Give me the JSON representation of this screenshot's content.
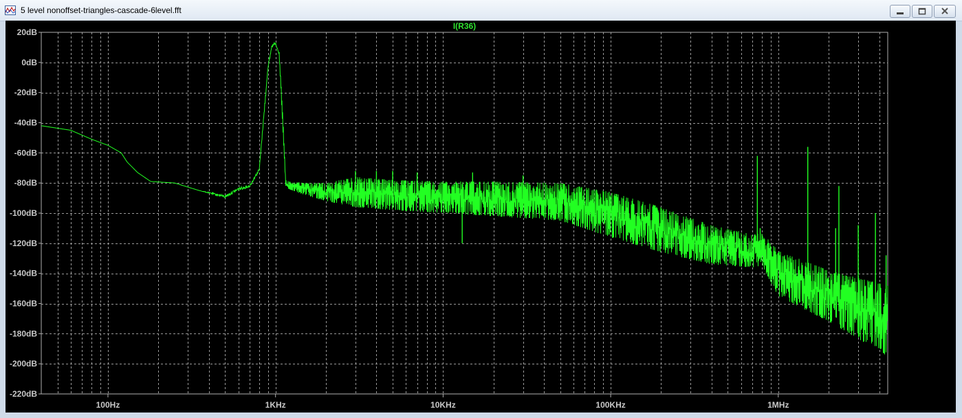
{
  "window": {
    "title": "5 level nonoffset-triangles-cascade-6level.fft",
    "icon": "ltspice-plot-icon",
    "controls": {
      "minimize": "minimize-icon",
      "maximize": "maximize-icon",
      "close": "close-icon"
    }
  },
  "colors": {
    "background": "#000000",
    "trace": "#22ff22",
    "grid": "#9a9a9a",
    "axis_text": "#c8c8c8"
  },
  "chart_data": {
    "type": "line",
    "title": "I(R36)",
    "xlabel": "",
    "ylabel": "",
    "x_scale": "log",
    "xlim": [
      40,
      4500000
    ],
    "ylim": [
      -220,
      20
    ],
    "grid": true,
    "x_ticks": [
      {
        "value": 100,
        "label": "100Hz"
      },
      {
        "value": 1000,
        "label": "1KHz"
      },
      {
        "value": 10000,
        "label": "10KHz"
      },
      {
        "value": 100000,
        "label": "100KHz"
      },
      {
        "value": 1000000,
        "label": "1MHz"
      }
    ],
    "y_ticks": [
      {
        "value": 20,
        "label": "20dB"
      },
      {
        "value": 0,
        "label": "0dB"
      },
      {
        "value": -20,
        "label": "-20dB"
      },
      {
        "value": -40,
        "label": "-40dB"
      },
      {
        "value": -60,
        "label": "-60dB"
      },
      {
        "value": -80,
        "label": "-80dB"
      },
      {
        "value": -100,
        "label": "-100dB"
      },
      {
        "value": -120,
        "label": "-120dB"
      },
      {
        "value": -140,
        "label": "-140dB"
      },
      {
        "value": -160,
        "label": "-160dB"
      },
      {
        "value": -180,
        "label": "-180dB"
      },
      {
        "value": -200,
        "label": "-200dB"
      },
      {
        "value": -220,
        "label": "-220dB"
      }
    ],
    "series": [
      {
        "name": "I(R36)",
        "color": "#22ff22",
        "envelope": {
          "x": [
            40,
            60,
            80,
            100,
            120,
            130,
            150,
            180,
            250,
            350,
            500,
            600,
            700,
            800,
            850,
            900,
            950,
            1000,
            1050,
            1100,
            1150,
            1200,
            1500,
            2000,
            3000,
            5000,
            10000,
            20000,
            50000,
            100000,
            200000,
            400000,
            700000,
            800000,
            1000000,
            2000000,
            4500000
          ],
          "upper": [
            -42,
            -45,
            -51,
            -55,
            -60,
            -66,
            -73,
            -79,
            -80,
            -85,
            -88,
            -83,
            -81,
            -70,
            -35,
            -3,
            12,
            14,
            8,
            -30,
            -78,
            -79,
            -80,
            -80,
            -76,
            -78,
            -79,
            -79,
            -80,
            -86,
            -96,
            -108,
            -114,
            -113,
            -125,
            -138,
            -148
          ],
          "lower": [
            -42,
            -45,
            -51,
            -55,
            -60,
            -66,
            -73,
            -79,
            -80,
            -85,
            -90,
            -85,
            -83,
            -72,
            -38,
            -6,
            10,
            12,
            5,
            -40,
            -82,
            -84,
            -88,
            -92,
            -96,
            -98,
            -100,
            -102,
            -105,
            -116,
            -126,
            -134,
            -136,
            -135,
            -155,
            -172,
            -195
          ]
        },
        "spikes": [
          {
            "x": 3000,
            "y": -72
          },
          {
            "x": 4000,
            "y": -72
          },
          {
            "x": 5000,
            "y": -72
          },
          {
            "x": 7000,
            "y": -73
          },
          {
            "x": 13000,
            "y": -120
          },
          {
            "x": 15000,
            "y": -73
          },
          {
            "x": 30000,
            "y": -75
          },
          {
            "x": 750000,
            "y": -62
          },
          {
            "x": 780000,
            "y": -110
          },
          {
            "x": 1500000,
            "y": -56
          },
          {
            "x": 2200000,
            "y": -110
          },
          {
            "x": 2300000,
            "y": -82
          },
          {
            "x": 3000000,
            "y": -108
          },
          {
            "x": 3800000,
            "y": -100
          },
          {
            "x": 4400000,
            "y": -128
          }
        ]
      }
    ]
  }
}
